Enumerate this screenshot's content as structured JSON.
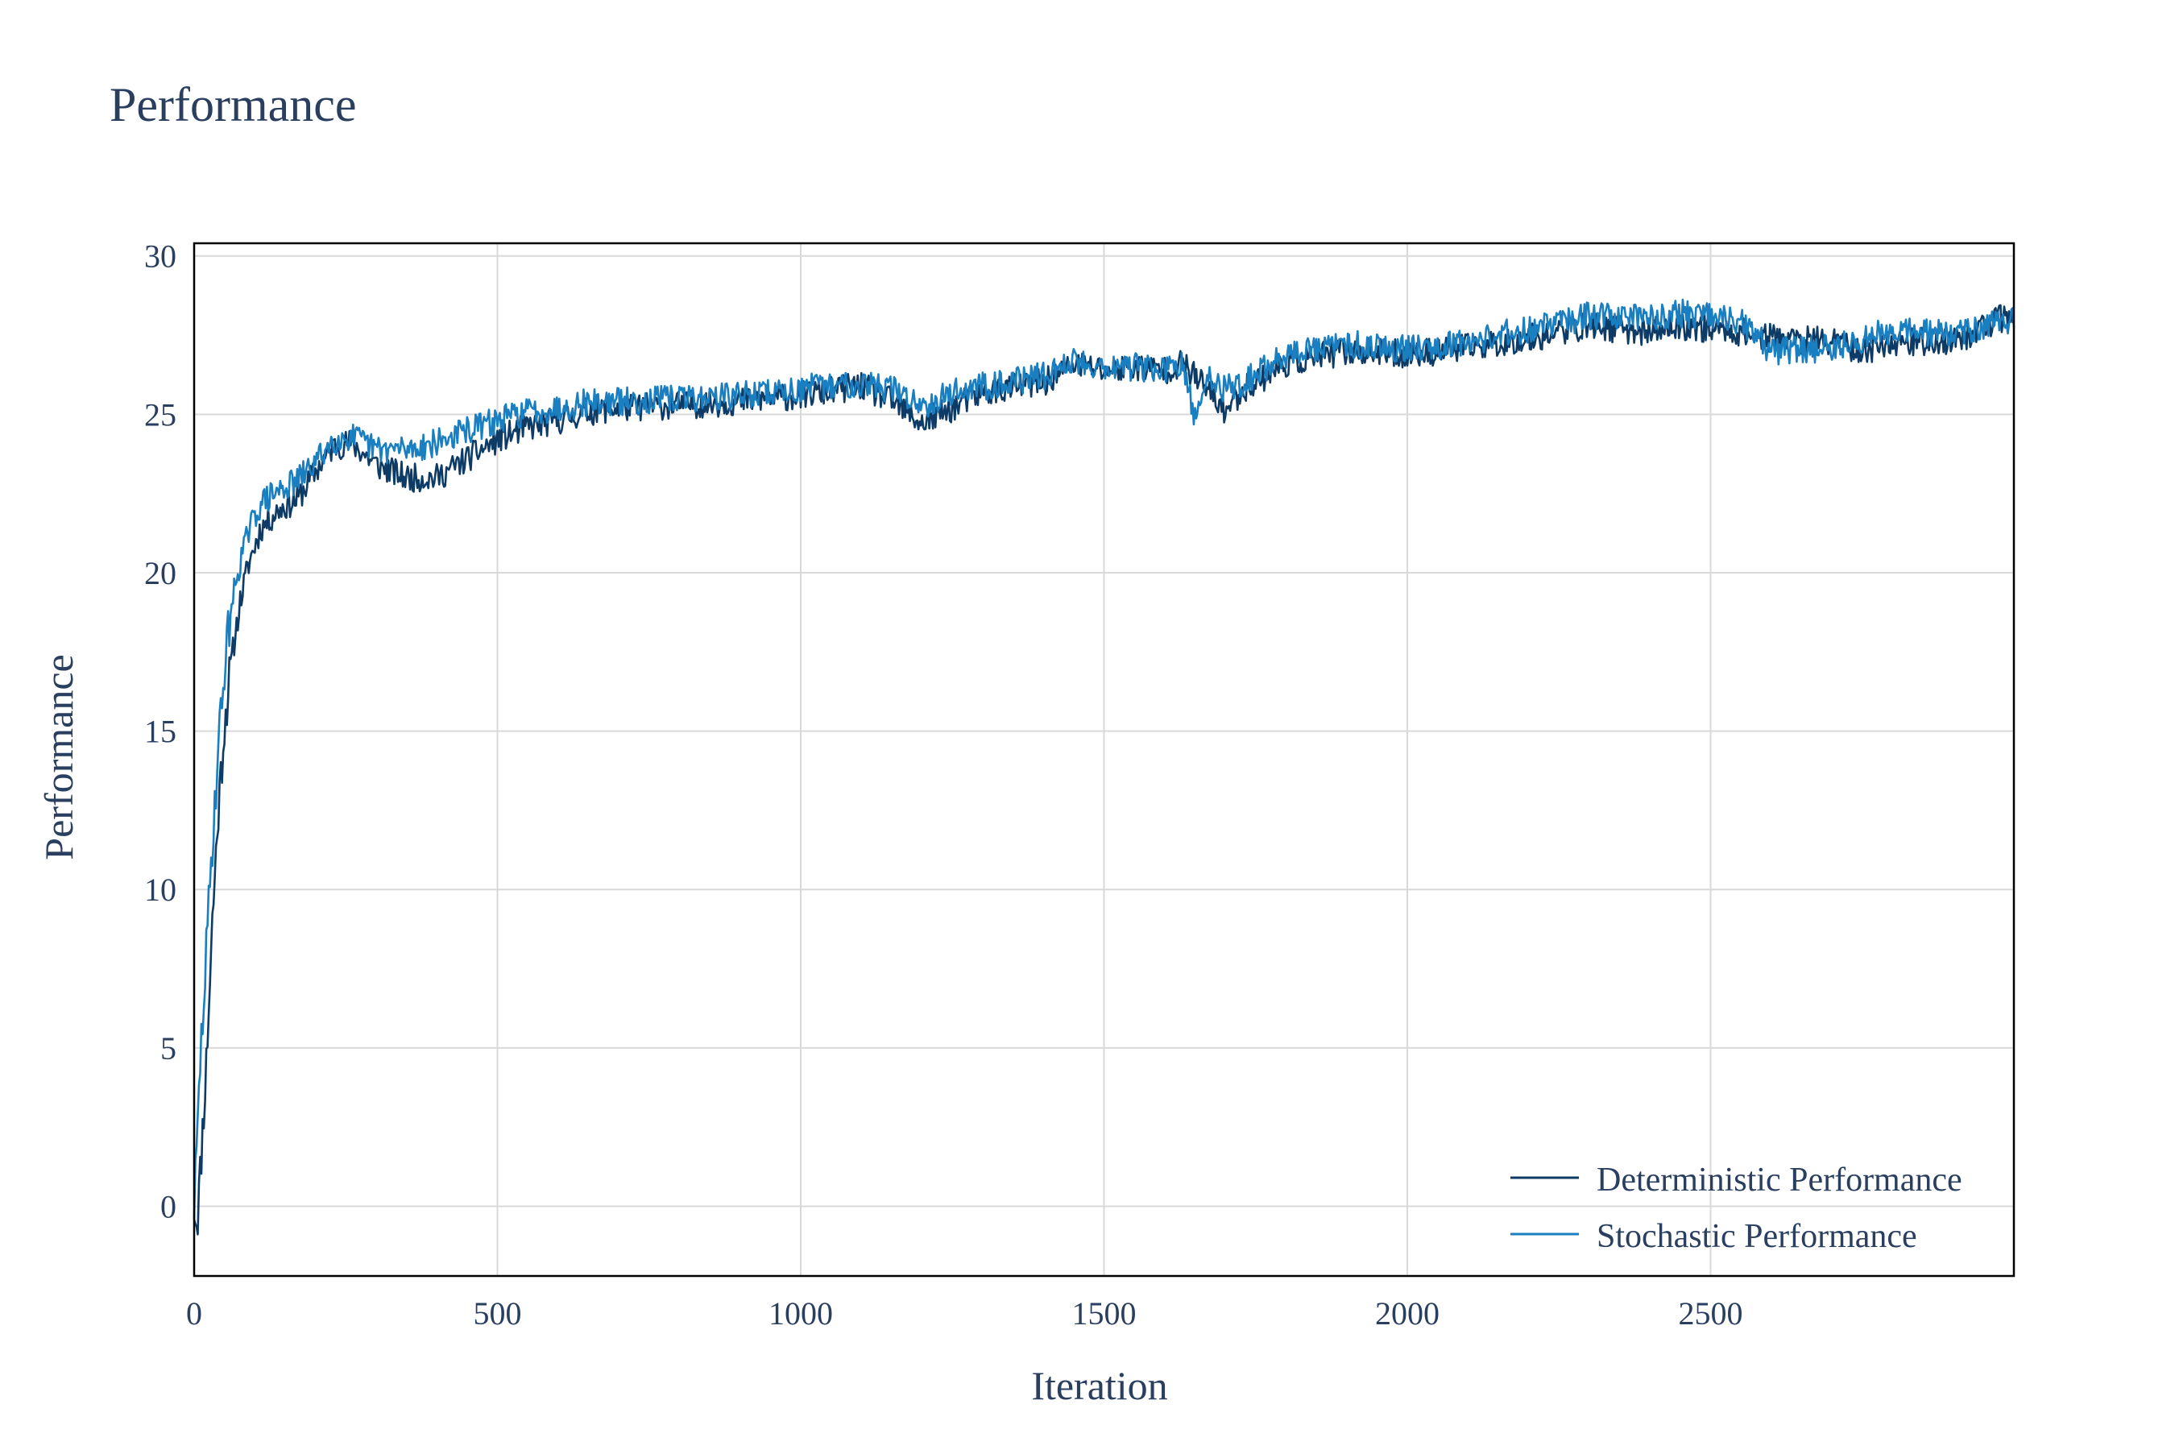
{
  "chart_data": {
    "type": "line",
    "title": "Performance",
    "xlabel": "Iteration",
    "ylabel": "Performance",
    "xlim": [
      0,
      3000
    ],
    "ylim": [
      -2.2,
      30.4
    ],
    "x_ticks": [
      0,
      500,
      1000,
      1500,
      2000,
      2500
    ],
    "y_ticks": [
      0,
      5,
      10,
      15,
      20,
      25,
      30
    ],
    "grid": true,
    "legend_position": "bottom-right",
    "series": [
      {
        "name": "Deterministic Performance",
        "color": "#0d3b66",
        "noise": 0.45,
        "seed": 11,
        "points": [
          [
            0,
            0.0
          ],
          [
            5,
            -0.5
          ],
          [
            10,
            1.0
          ],
          [
            20,
            4.5
          ],
          [
            30,
            9.0
          ],
          [
            40,
            12.5
          ],
          [
            50,
            15.2
          ],
          [
            60,
            17.0
          ],
          [
            75,
            19.0
          ],
          [
            90,
            20.3
          ],
          [
            110,
            21.4
          ],
          [
            140,
            22.0
          ],
          [
            170,
            22.3
          ],
          [
            200,
            23.2
          ],
          [
            230,
            24.0
          ],
          [
            260,
            24.1
          ],
          [
            300,
            23.4
          ],
          [
            350,
            23.0
          ],
          [
            400,
            23.0
          ],
          [
            450,
            23.6
          ],
          [
            500,
            24.2
          ],
          [
            550,
            24.6
          ],
          [
            600,
            24.8
          ],
          [
            650,
            25.1
          ],
          [
            700,
            25.2
          ],
          [
            800,
            25.3
          ],
          [
            900,
            25.4
          ],
          [
            1000,
            25.6
          ],
          [
            1100,
            25.9
          ],
          [
            1150,
            25.4
          ],
          [
            1200,
            24.7
          ],
          [
            1250,
            25.2
          ],
          [
            1300,
            25.7
          ],
          [
            1400,
            26.0
          ],
          [
            1450,
            26.6
          ],
          [
            1500,
            26.4
          ],
          [
            1550,
            26.5
          ],
          [
            1600,
            26.4
          ],
          [
            1630,
            26.6
          ],
          [
            1660,
            26.0
          ],
          [
            1700,
            25.1
          ],
          [
            1730,
            25.8
          ],
          [
            1800,
            26.6
          ],
          [
            1900,
            27.0
          ],
          [
            2000,
            26.9
          ],
          [
            2100,
            27.1
          ],
          [
            2200,
            27.4
          ],
          [
            2300,
            27.8
          ],
          [
            2400,
            27.6
          ],
          [
            2450,
            27.8
          ],
          [
            2550,
            27.6
          ],
          [
            2600,
            27.4
          ],
          [
            2700,
            27.3
          ],
          [
            2750,
            27.0
          ],
          [
            2800,
            27.3
          ],
          [
            2900,
            27.3
          ],
          [
            3000,
            28.2
          ]
        ]
      },
      {
        "name": "Stochastic Performance",
        "color": "#1a7fc1",
        "noise": 0.45,
        "seed": 29,
        "points": [
          [
            0,
            0.0
          ],
          [
            5,
            2.0
          ],
          [
            10,
            4.5
          ],
          [
            20,
            8.0
          ],
          [
            30,
            11.5
          ],
          [
            40,
            14.5
          ],
          [
            50,
            17.0
          ],
          [
            60,
            18.8
          ],
          [
            75,
            20.3
          ],
          [
            90,
            21.3
          ],
          [
            110,
            22.2
          ],
          [
            140,
            22.6
          ],
          [
            170,
            22.9
          ],
          [
            200,
            23.5
          ],
          [
            230,
            24.2
          ],
          [
            260,
            24.3
          ],
          [
            300,
            23.9
          ],
          [
            350,
            23.9
          ],
          [
            400,
            24.1
          ],
          [
            450,
            24.5
          ],
          [
            500,
            24.8
          ],
          [
            550,
            25.1
          ],
          [
            600,
            25.2
          ],
          [
            650,
            25.4
          ],
          [
            700,
            25.4
          ],
          [
            800,
            25.5
          ],
          [
            900,
            25.6
          ],
          [
            1000,
            25.8
          ],
          [
            1100,
            26.0
          ],
          [
            1150,
            25.8
          ],
          [
            1200,
            25.3
          ],
          [
            1250,
            25.7
          ],
          [
            1300,
            25.9
          ],
          [
            1400,
            26.2
          ],
          [
            1450,
            26.7
          ],
          [
            1500,
            26.5
          ],
          [
            1550,
            26.5
          ],
          [
            1600,
            26.4
          ],
          [
            1630,
            26.5
          ],
          [
            1650,
            24.8
          ],
          [
            1670,
            26.2
          ],
          [
            1700,
            25.8
          ],
          [
            1730,
            26.0
          ],
          [
            1800,
            26.9
          ],
          [
            1900,
            27.2
          ],
          [
            2000,
            27.1
          ],
          [
            2100,
            27.3
          ],
          [
            2200,
            27.7
          ],
          [
            2300,
            28.1
          ],
          [
            2400,
            28.1
          ],
          [
            2450,
            28.2
          ],
          [
            2550,
            27.9
          ],
          [
            2600,
            27.0
          ],
          [
            2700,
            27.1
          ],
          [
            2750,
            27.3
          ],
          [
            2800,
            27.7
          ],
          [
            2900,
            27.5
          ],
          [
            3000,
            28.0
          ]
        ]
      }
    ]
  }
}
